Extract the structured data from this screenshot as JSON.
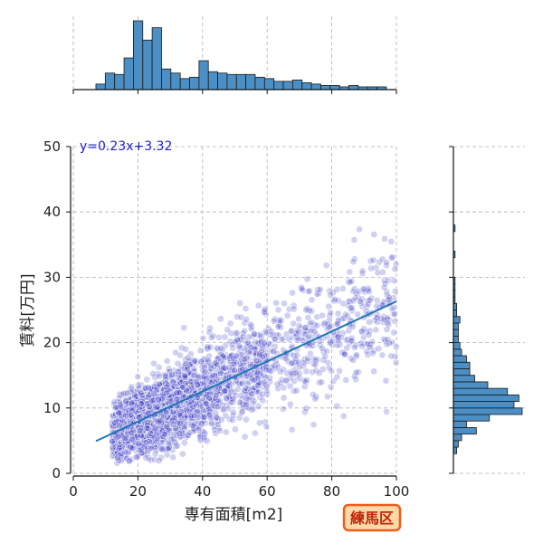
{
  "chart_data": {
    "type": "scatter",
    "xlabel": "専有面積[m2]",
    "ylabel": "賃料[万円]",
    "xlim": [
      0,
      100
    ],
    "ylim": [
      0,
      50
    ],
    "x_ticks": [
      0,
      20,
      40,
      60,
      80,
      100
    ],
    "y_ticks": [
      0,
      10,
      20,
      30,
      40,
      50
    ],
    "grid": true,
    "badge": "練馬区",
    "regression": {
      "label": "y=0.23x+3.32",
      "slope": 0.23,
      "intercept": 3.32,
      "x_range": [
        7,
        100
      ]
    },
    "scatter_envelope": {
      "x_range": [
        7,
        100
      ],
      "y_spread_sd": 3.0,
      "approx_point_count": 3000
    },
    "top_histogram": {
      "bin_start": 7,
      "bin_width": 2.9,
      "counts": [
        8,
        24,
        22,
        46,
        100,
        72,
        90,
        30,
        24,
        16,
        18,
        42,
        26,
        24,
        22,
        22,
        22,
        18,
        16,
        12,
        12,
        14,
        10,
        8,
        6,
        6,
        4,
        6,
        4,
        4,
        4
      ]
    },
    "right_histogram": {
      "bin_start": 3,
      "bin_width": 1.0,
      "counts": [
        2,
        3,
        5,
        14,
        8,
        22,
        42,
        37,
        40,
        33,
        21,
        13,
        10,
        10,
        8,
        5,
        4,
        3,
        3,
        3,
        4,
        2,
        2,
        1,
        1,
        1,
        1,
        0,
        0,
        0,
        1,
        0,
        0,
        0,
        1,
        0,
        0,
        0,
        0,
        0,
        0,
        0
      ]
    },
    "colors": {
      "scatter": "#2f2fc4",
      "regression_line": "#1f77b4",
      "histogram_fill": "#4c8fc4",
      "histogram_edge": "#1a1a1a",
      "regression_text": "#1c1ccf",
      "badge_fill": "#ffd8a8",
      "badge_border": "#f05a1a",
      "badge_text": "#c0250a",
      "grid": "#b0b0b0"
    }
  }
}
